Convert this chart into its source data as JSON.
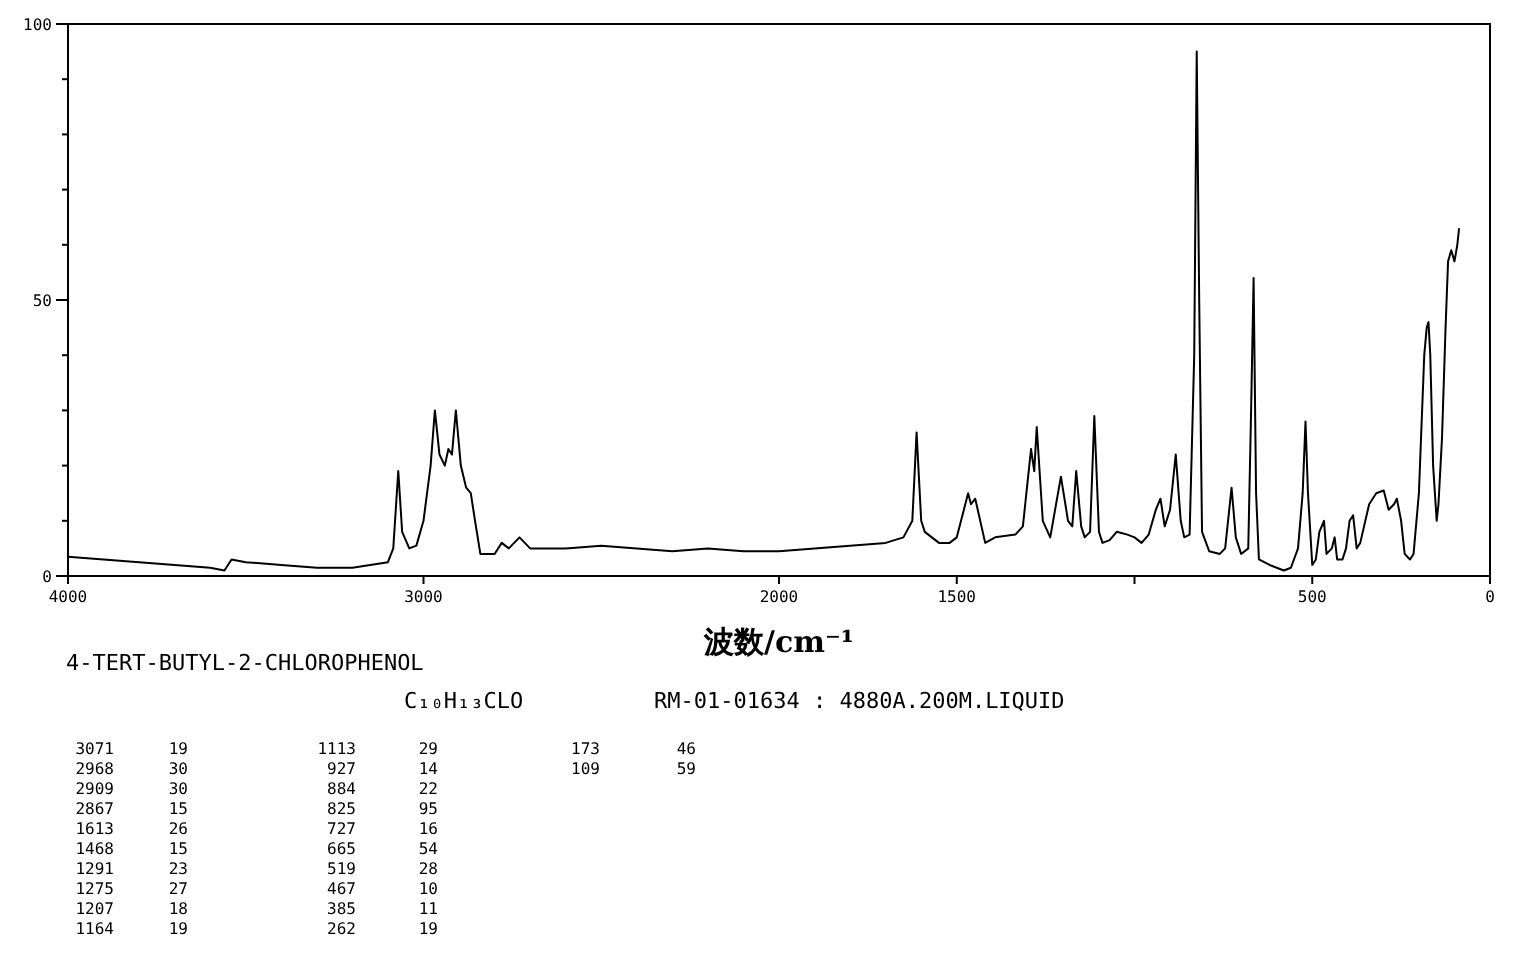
{
  "chart_data": {
    "type": "line",
    "xlabel": "波数/cm⁻¹",
    "xlim": [
      4000,
      0
    ],
    "xticks": [
      4000,
      3000,
      2000,
      1500,
      {
        "value": 1000,
        "label": null
      },
      500,
      0
    ],
    "ylim": [
      0,
      100
    ],
    "yticks": [
      0,
      {
        "value": 10,
        "label": null
      },
      {
        "value": 20,
        "label": null
      },
      {
        "value": 30,
        "label": null
      },
      {
        "value": 40,
        "label": null
      },
      50,
      {
        "value": 60,
        "label": null
      },
      {
        "value": 70,
        "label": null
      },
      {
        "value": 80,
        "label": null
      },
      {
        "value": 90,
        "label": null
      },
      100
    ],
    "series": [
      {
        "color": "#000000",
        "x": [
          4000,
          3900,
          3800,
          3700,
          3600,
          3560,
          3540,
          3500,
          3400,
          3300,
          3200,
          3150,
          3100,
          3085,
          3071,
          3060,
          3040,
          3020,
          3000,
          2980,
          2968,
          2955,
          2940,
          2930,
          2920,
          2909,
          2895,
          2880,
          2867,
          2855,
          2840,
          2800,
          2780,
          2760,
          2730,
          2700,
          2600,
          2500,
          2400,
          2300,
          2200,
          2100,
          2000,
          1900,
          1800,
          1700,
          1650,
          1625,
          1613,
          1600,
          1590,
          1570,
          1550,
          1520,
          1500,
          1480,
          1468,
          1460,
          1448,
          1420,
          1392,
          1335,
          1314,
          1291,
          1282,
          1275,
          1258,
          1237,
          1207,
          1187,
          1175,
          1164,
          1150,
          1140,
          1125,
          1113,
          1100,
          1090,
          1070,
          1050,
          1020,
          1000,
          980,
          960,
          940,
          927,
          915,
          900,
          884,
          870,
          860,
          845,
          832,
          825,
          818,
          810,
          790,
          760,
          745,
          727,
          715,
          700,
          680,
          672,
          665,
          658,
          650,
          620,
          580,
          560,
          540,
          527,
          519,
          512,
          500,
          490,
          480,
          467,
          460,
          445,
          437,
          430,
          415,
          405,
          395,
          385,
          375,
          365,
          340,
          320,
          299,
          285,
          270,
          262,
          250,
          240,
          225,
          215,
          200,
          185,
          178,
          173,
          168,
          160,
          150,
          145,
          135,
          125,
          118,
          109,
          100,
          92,
          87
        ],
        "values": [
          3.5,
          3,
          2.5,
          2,
          1.5,
          1,
          3,
          2.5,
          2,
          1.5,
          1.5,
          2,
          2.5,
          5,
          19,
          8,
          5,
          5.5,
          10,
          20,
          30,
          22,
          20,
          23,
          22,
          30,
          20,
          16,
          15,
          10,
          4,
          4,
          6,
          5,
          7,
          5,
          5,
          5.5,
          5,
          4.5,
          5,
          4.5,
          4.5,
          5,
          5.5,
          6,
          7,
          10,
          26,
          10,
          8,
          7,
          6,
          6,
          7,
          12,
          15,
          13,
          14,
          6,
          7,
          7.5,
          9,
          23,
          19,
          27,
          10,
          7,
          18,
          10,
          9,
          19,
          9,
          7,
          8,
          29,
          8,
          6,
          6.5,
          8,
          7.5,
          7,
          6,
          7.5,
          12,
          14,
          9,
          12,
          22,
          10,
          7,
          7.5,
          40,
          95,
          50,
          8,
          4.5,
          4,
          5,
          16,
          7,
          4,
          5,
          30,
          54,
          15,
          3,
          2,
          1,
          1.5,
          5,
          15,
          28,
          15,
          2,
          3,
          8,
          10,
          4,
          5,
          7,
          3,
          3,
          5,
          10,
          11,
          5,
          6,
          13,
          15,
          15.5,
          12,
          13,
          14,
          10,
          4,
          3,
          4,
          15,
          40,
          45,
          46,
          40,
          20,
          10,
          13,
          25,
          45,
          57,
          59,
          57,
          60,
          63
        ]
      }
    ],
    "annotations": [
      "4-TERT-BUTYL-2-CHLOROPHENOL",
      "C₁₀H₁₃CLO",
      "RM-01-01634 : 4880A.200M.LIQUID",
      "3071",
      "19",
      "2968",
      "30",
      "2909",
      "30",
      "2867",
      "15",
      "1613",
      "26",
      "1468",
      "15",
      "1291",
      "23",
      "1275",
      "27",
      "1207",
      "18",
      "1164",
      "19",
      "1113",
      "29",
      "927",
      "14",
      "884",
      "22",
      "825",
      "95",
      "727",
      "16",
      "665",
      "54",
      "519",
      "28",
      "467",
      "10",
      "385",
      "11",
      "262",
      "19",
      "173",
      "46",
      "109",
      "59"
    ]
  }
}
